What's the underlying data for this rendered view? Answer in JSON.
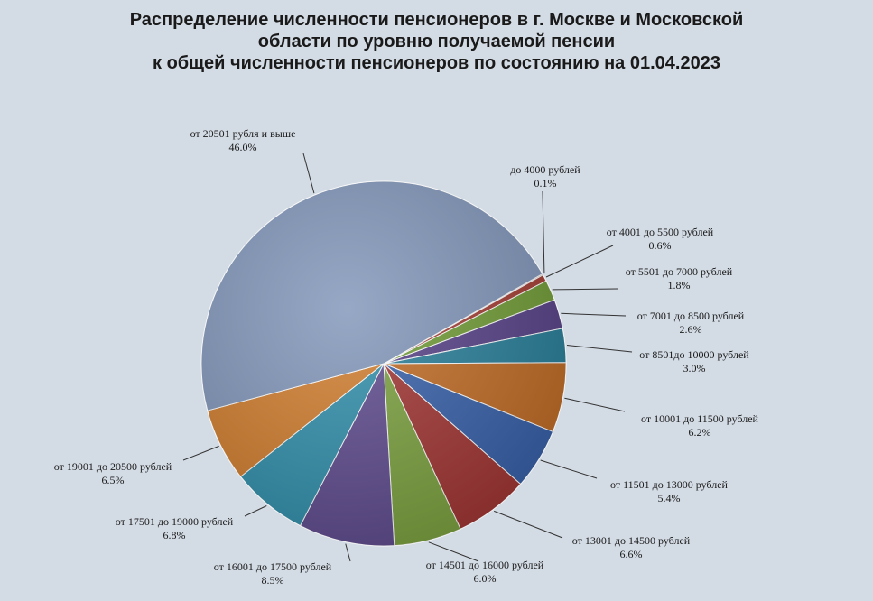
{
  "chart_data": {
    "type": "pie",
    "title_lines": [
      "Распределение численности пенсионеров в г. Москве и Московской",
      "области по уровню получаемой пенсии",
      "к общей численности пенсионеров по состоянию на 01.04.2023"
    ],
    "slices": [
      {
        "label": "до 4000 рублей",
        "value": 0.1,
        "pct_label": "0.1%",
        "color": "#8a2e2e"
      },
      {
        "label": "от 4001 до 5500 рублей",
        "value": 0.6,
        "pct_label": "0.6%",
        "color": "#a23a30"
      },
      {
        "label": "от 5501 до 7000 рублей",
        "value": 1.8,
        "pct_label": "1.8%",
        "color": "#6f9a34"
      },
      {
        "label": "от 7001 до 8500 рублей",
        "value": 2.6,
        "pct_label": "2.6%",
        "color": "#553f86"
      },
      {
        "label": "от 8501до 10000 рублей",
        "value": 3.0,
        "pct_label": "3.0%",
        "color": "#267d98"
      },
      {
        "label": "от 10001 до 11500 рублей",
        "value": 6.2,
        "pct_label": "6.2%",
        "color": "#c06a22"
      },
      {
        "label": "от 11501 до 13000 рублей",
        "value": 5.4,
        "pct_label": "5.4%",
        "color": "#355fa8"
      },
      {
        "label": "от 13001 до 14500 рублей",
        "value": 6.6,
        "pct_label": "6.6%",
        "color": "#a03432"
      },
      {
        "label": "от 14501 до 16000 рублей",
        "value": 6.0,
        "pct_label": "6.0%",
        "color": "#7aa13e"
      },
      {
        "label": "от 16001 до 17500 рублей",
        "value": 8.5,
        "pct_label": "8.5%",
        "color": "#5e4a8e"
      },
      {
        "label": "от 17501 до 19000 рублей",
        "value": 6.8,
        "pct_label": "6.8%",
        "color": "#2f8eaa"
      },
      {
        "label": "от 19001 до 20500 рублей",
        "value": 6.5,
        "pct_label": "6.5%",
        "color": "#d07c2c"
      },
      {
        "label": "от 20501 рубля и выше",
        "value": 46.0,
        "pct_label": "46.0%",
        "color": "#7f95b8"
      }
    ]
  }
}
